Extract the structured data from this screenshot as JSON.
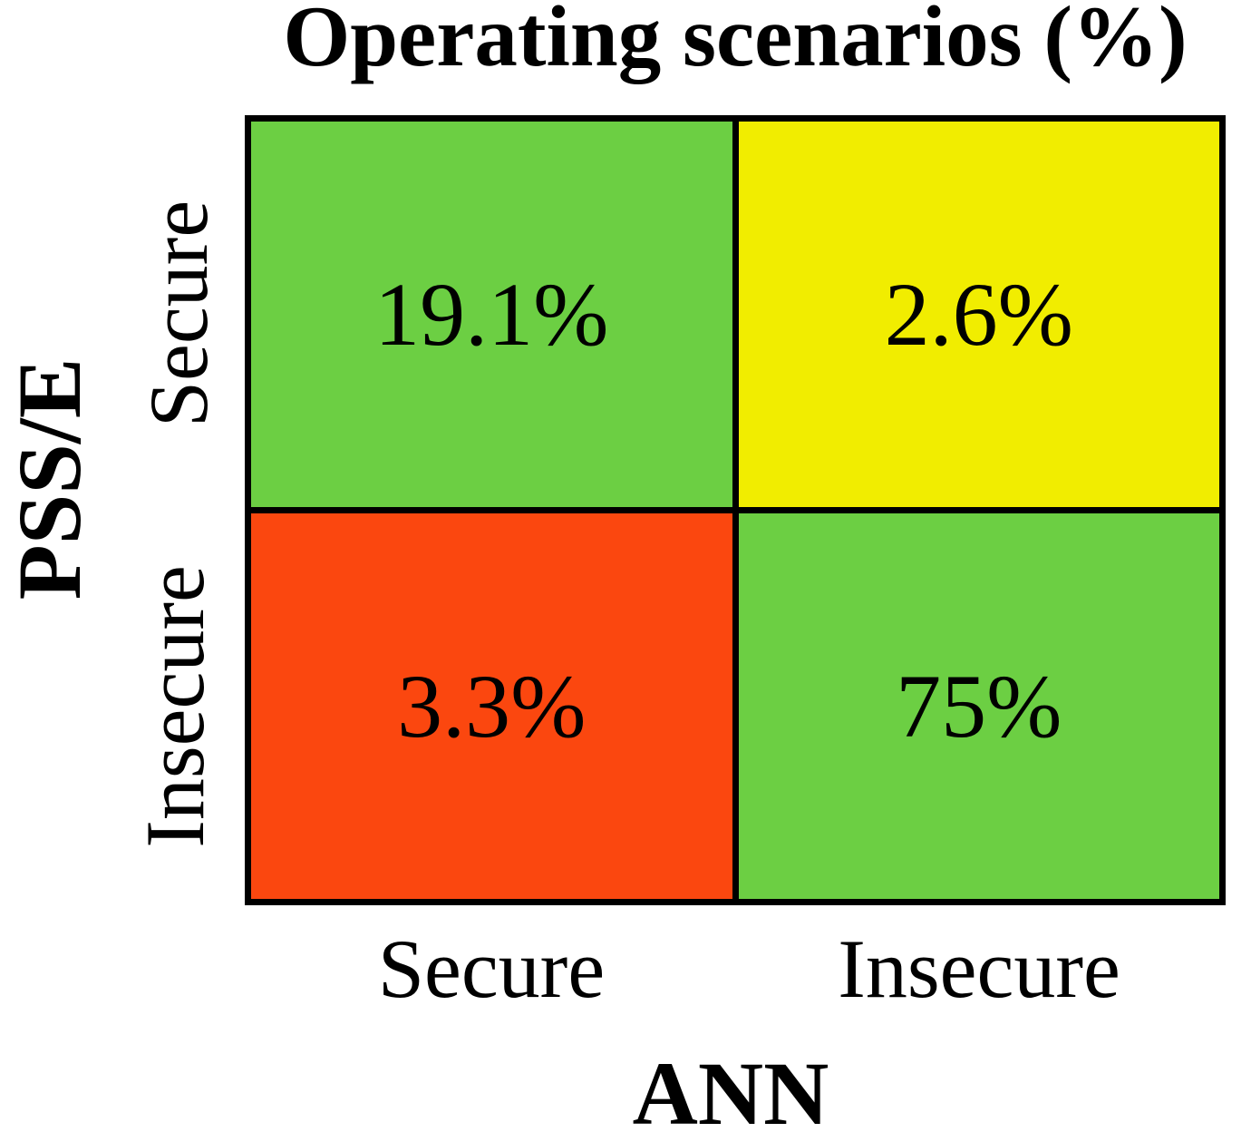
{
  "title": "Operating scenarios (%)",
  "axes": {
    "x": {
      "label": "ANN",
      "ticks": [
        "Secure",
        "Insecure"
      ]
    },
    "y": {
      "label": "PSS/E",
      "ticks": [
        "Secure",
        "Insecure"
      ]
    }
  },
  "colors": {
    "green": "#6CCF43",
    "yellow": "#F1ED00",
    "red": "#FB470F",
    "border": "#000000",
    "background": "#FFFFFF",
    "text": "#000000"
  },
  "cells": {
    "secure_secure": {
      "label": "19.1%",
      "color": "#6CCF43"
    },
    "secure_insecure": {
      "label": "2.6%",
      "color": "#F1ED00"
    },
    "insecure_secure": {
      "label": "3.3%",
      "color": "#FB470F"
    },
    "insecure_insecure": {
      "label": "75%",
      "color": "#6CCF43"
    }
  },
  "chart_data": {
    "type": "heatmap",
    "title": "Operating scenarios (%)",
    "xlabel": "ANN",
    "ylabel": "PSS/E",
    "x_categories": [
      "Secure",
      "Insecure"
    ],
    "y_categories": [
      "Secure",
      "Insecure"
    ],
    "values": [
      [
        19.1,
        2.6
      ],
      [
        3.3,
        75.0
      ]
    ],
    "value_labels": [
      [
        "19.1%",
        "2.6%"
      ],
      [
        "3.3%",
        "75%"
      ]
    ],
    "cell_colors": [
      [
        "#6CCF43",
        "#F1ED00"
      ],
      [
        "#FB470F",
        "#6CCF43"
      ]
    ],
    "units": "percent of operating scenarios",
    "legend": "none",
    "grid": "2x2 matrix, thick black cell borders"
  }
}
